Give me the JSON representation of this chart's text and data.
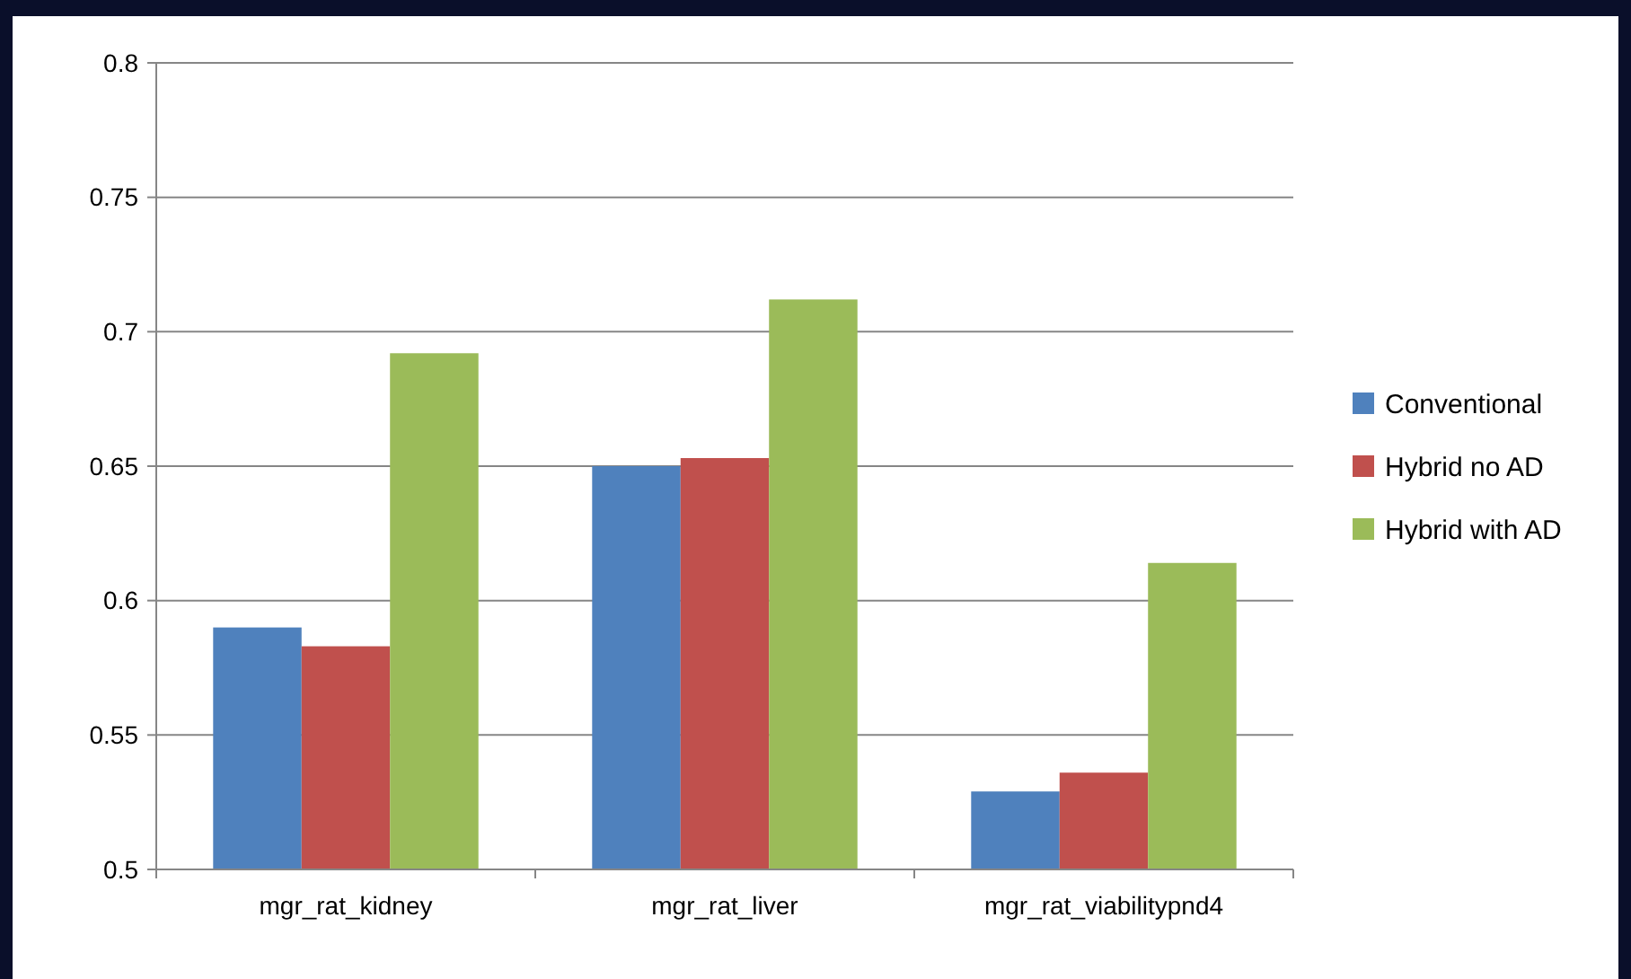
{
  "chart_data": {
    "type": "bar",
    "categories": [
      "mgr_rat_kidney",
      "mgr_rat_liver",
      "mgr_rat_viabilitypnd4"
    ],
    "series": [
      {
        "name": "Conventional",
        "color": "#4f81bd",
        "values": [
          0.59,
          0.65,
          0.529
        ]
      },
      {
        "name": "Hybrid no AD",
        "color": "#c0504d",
        "values": [
          0.583,
          0.653,
          0.536
        ]
      },
      {
        "name": "Hybrid with AD",
        "color": "#9bbb59",
        "values": [
          0.692,
          0.712,
          0.614
        ]
      }
    ],
    "ylim": [
      0.5,
      0.8
    ],
    "yticks": [
      0.5,
      0.55,
      0.6,
      0.65,
      0.7,
      0.75,
      0.8
    ],
    "grid": "y",
    "legend": "right"
  }
}
